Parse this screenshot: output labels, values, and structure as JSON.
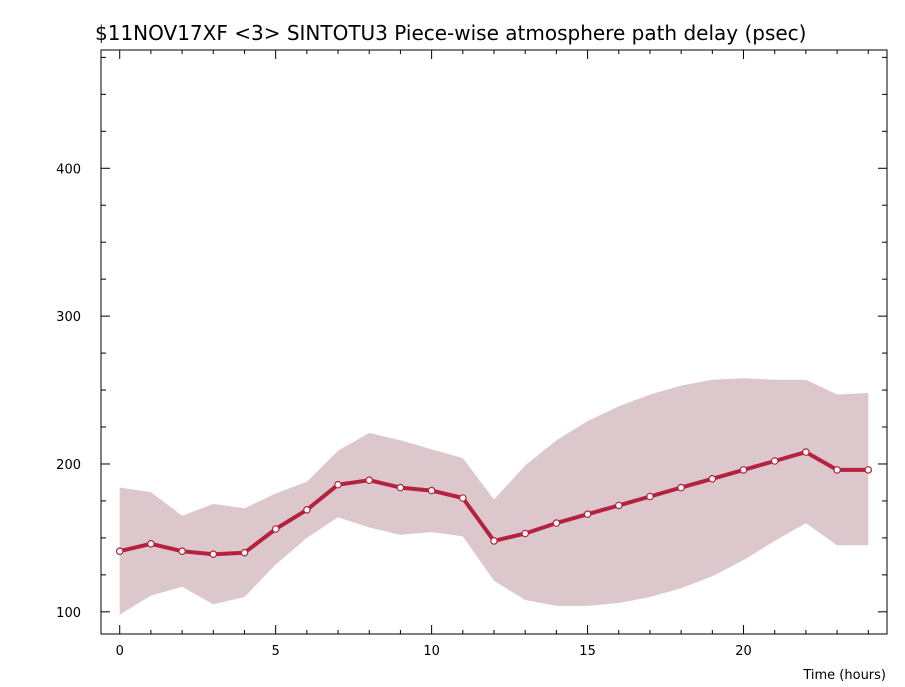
{
  "chart_data": {
    "type": "line",
    "title": "$11NOV17XF <3>  SINTOTU3  Piece-wise atmosphere path delay (psec)",
    "xlabel": "Time (hours)",
    "ylabel": "",
    "xlim": [
      -0.6,
      24.6
    ],
    "ylim": [
      85,
      480
    ],
    "x_ticks": [
      0,
      5,
      10,
      15,
      20
    ],
    "y_ticks": [
      100,
      200,
      300,
      400
    ],
    "grid": false,
    "colors": {
      "line": "#b5223f",
      "band": "#dcc8cc",
      "marker_fill": "#ffffff",
      "axis": "#000000"
    },
    "series": [
      {
        "x": [
          0,
          1,
          2,
          3,
          4,
          5,
          6,
          7,
          8,
          9,
          10,
          11,
          12,
          13,
          14,
          15,
          16,
          17,
          18,
          19,
          20,
          21,
          22,
          23,
          24
        ],
        "values": [
          141,
          146,
          141,
          139,
          140,
          156,
          169,
          186,
          189,
          184,
          182,
          177,
          148,
          153,
          160,
          166,
          172,
          178,
          184,
          190,
          196,
          202,
          208,
          196,
          196
        ]
      }
    ],
    "band": {
      "x": [
        0,
        1,
        2,
        3,
        4,
        5,
        6,
        7,
        8,
        9,
        10,
        11,
        12,
        13,
        14,
        15,
        16,
        17,
        18,
        19,
        20,
        21,
        22,
        23,
        24
      ],
      "upper": [
        184,
        181,
        165,
        173,
        170,
        180,
        188,
        209,
        221,
        216,
        210,
        204,
        176,
        199,
        216,
        229,
        239,
        247,
        253,
        257,
        258,
        257,
        257,
        247,
        248
      ],
      "lower": [
        98,
        111,
        117,
        105,
        110,
        132,
        150,
        164,
        157,
        152,
        154,
        151,
        121,
        108,
        104,
        104,
        106,
        110,
        116,
        124,
        135,
        148,
        160,
        145,
        145
      ]
    }
  }
}
